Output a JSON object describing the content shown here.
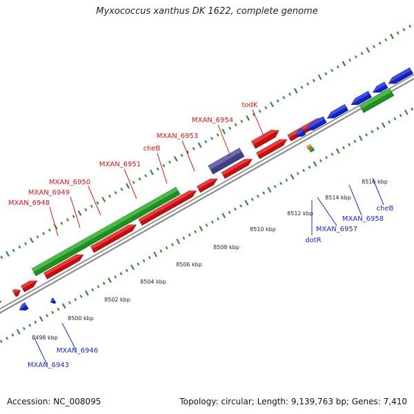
{
  "title": "Myxococcus xanthus DK 1622, complete genome",
  "footer": {
    "accession": "Accession: NC_008095",
    "stats": "Topology: circular; Length: 9,139,763 bp; Genes: 7,410"
  },
  "colors": {
    "forward_strand_gene": "#e81010",
    "reverse_strand_gene": "#1428e0",
    "rna_gene": "#22aa22",
    "highlighted_gene": "#4a4a9a",
    "small_feature_orange": "#f08a00",
    "backbone": "#8c8c8c",
    "tick_marks": "#2e8b2e"
  },
  "ruler_labels": [
    "8498 kbp",
    "8500 kbp",
    "8502 kbp",
    "8504 kbp",
    "8506 kbp",
    "8508 kbp",
    "8510 kbp",
    "8512 kbp",
    "8514 kbp",
    "8516 kbp"
  ],
  "forward_gene_labels": [
    "MXAN_6948",
    "MXAN_6949",
    "MXAN_6950",
    "MXAN_6951",
    "cheB",
    "MXAN_6953",
    "MXAN_6954",
    "todK"
  ],
  "reverse_gene_labels": [
    "MXAN_6943",
    "MXAN_6946",
    "dotR",
    "MXAN_6957",
    "MXAN_6958",
    "cheB"
  ]
}
